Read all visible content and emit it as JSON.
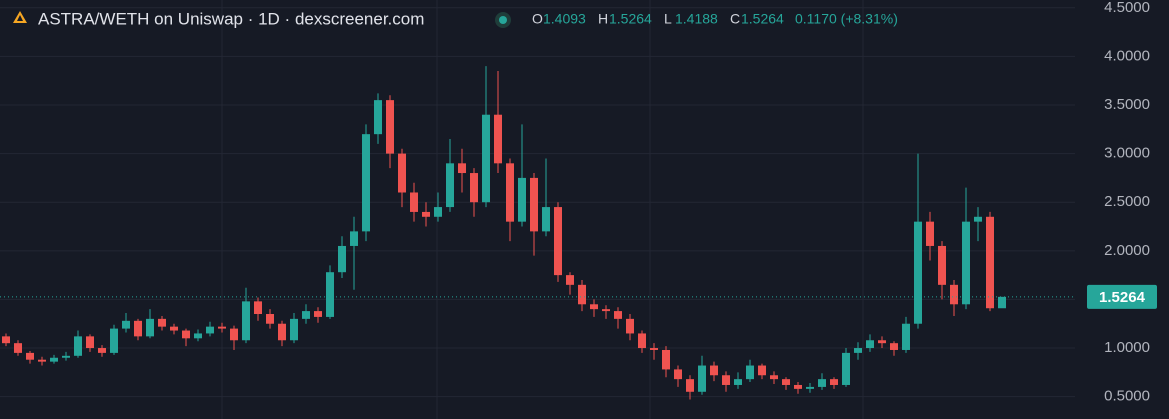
{
  "chart_data": {
    "type": "candlestick",
    "title": "ASTRA/WETH on Uniswap · 1D · dexscreener.com",
    "ohlc_legend": [
      {
        "label": "O",
        "value": 1.4093
      },
      {
        "label": "H",
        "value": 1.5264
      },
      {
        "label": "L",
        "value": 1.4188
      },
      {
        "label": "C",
        "value": 1.5264
      }
    ],
    "change": "0.1170 (+8.31%)",
    "up_color": "#26a69a",
    "down_color": "#ef5350",
    "ylim": [
      0.27,
      4.58
    ],
    "yticks": [
      {
        "value": 0.5,
        "label": "0.5000"
      },
      {
        "value": 1,
        "label": "1.0000"
      },
      {
        "value": 1.5,
        "label": "1.5000"
      },
      {
        "value": 2,
        "label": "2.0000"
      },
      {
        "value": 2.5,
        "label": "2.5000"
      },
      {
        "value": 3,
        "label": "3.0000"
      },
      {
        "value": 3.5,
        "label": "3.5000"
      },
      {
        "value": 4,
        "label": "4.0000"
      },
      {
        "value": 4.5,
        "label": "4.5000"
      }
    ],
    "grid": true,
    "last_price": 1.5264,
    "open": [
      1.12,
      1.05,
      0.95,
      0.88,
      0.86,
      0.9,
      0.92,
      1.12,
      1.0,
      0.95,
      1.2,
      1.28,
      1.12,
      1.3,
      1.22,
      1.18,
      1.1,
      1.15,
      1.22,
      1.2,
      1.08,
      1.48,
      1.35,
      1.25,
      1.08,
      1.3,
      1.38,
      1.32,
      1.78,
      2.05,
      2.2,
      3.2,
      3.55,
      3.0,
      2.6,
      2.4,
      2.35,
      2.45,
      2.9,
      2.8,
      2.5,
      3.4,
      2.9,
      2.3,
      2.75,
      2.2,
      2.45,
      1.75,
      1.65,
      1.45,
      1.4,
      1.38,
      1.3,
      1.15,
      1.0,
      0.98,
      0.78,
      0.68,
      0.55,
      0.82,
      0.72,
      0.62,
      0.68,
      0.82,
      0.72,
      0.68,
      0.62,
      0.58,
      0.6,
      0.68,
      0.62,
      0.95,
      1.0,
      1.08,
      1.05,
      0.98,
      1.25,
      2.3,
      2.05,
      1.65,
      1.45,
      2.3,
      2.35,
      1.4093
    ],
    "high": [
      1.15,
      1.08,
      0.97,
      0.91,
      0.93,
      0.96,
      1.18,
      1.14,
      1.03,
      1.24,
      1.36,
      1.3,
      1.4,
      1.33,
      1.25,
      1.2,
      1.19,
      1.27,
      1.26,
      1.23,
      1.62,
      1.52,
      1.4,
      1.28,
      1.36,
      1.45,
      1.42,
      1.85,
      2.15,
      2.35,
      3.3,
      3.62,
      3.6,
      3.05,
      2.7,
      2.5,
      2.6,
      3.15,
      3.05,
      2.85,
      3.9,
      3.85,
      2.95,
      3.3,
      2.8,
      2.95,
      2.5,
      1.78,
      1.7,
      1.5,
      1.44,
      1.42,
      1.35,
      1.18,
      1.05,
      1.02,
      0.82,
      0.72,
      0.92,
      0.86,
      0.76,
      0.75,
      0.88,
      0.84,
      0.76,
      0.7,
      0.65,
      0.64,
      0.74,
      0.7,
      1.0,
      1.06,
      1.14,
      1.12,
      1.07,
      1.32,
      3.0,
      2.4,
      2.1,
      1.7,
      2.65,
      2.45,
      2.4,
      1.5264
    ],
    "low": [
      1.02,
      0.92,
      0.84,
      0.82,
      0.84,
      0.87,
      0.9,
      0.96,
      0.91,
      0.93,
      1.16,
      1.08,
      1.1,
      1.18,
      1.14,
      1.02,
      1.07,
      1.12,
      1.16,
      0.98,
      1.05,
      1.28,
      1.2,
      1.02,
      1.05,
      1.25,
      1.26,
      1.3,
      1.72,
      1.6,
      2.1,
      3.1,
      2.85,
      2.45,
      2.3,
      2.25,
      2.3,
      2.4,
      2.6,
      2.35,
      2.45,
      2.8,
      2.1,
      2.25,
      1.95,
      2.15,
      1.68,
      1.55,
      1.38,
      1.32,
      1.3,
      1.2,
      1.08,
      0.95,
      0.88,
      0.7,
      0.6,
      0.47,
      0.52,
      0.66,
      0.55,
      0.58,
      0.65,
      0.68,
      0.63,
      0.57,
      0.53,
      0.54,
      0.57,
      0.58,
      0.6,
      0.88,
      0.96,
      1.0,
      0.92,
      0.95,
      1.2,
      1.9,
      1.5,
      1.33,
      1.4,
      2.1,
      1.38,
      1.4188
    ],
    "close": [
      1.05,
      0.95,
      0.88,
      0.86,
      0.9,
      0.92,
      1.12,
      1.0,
      0.95,
      1.2,
      1.28,
      1.12,
      1.3,
      1.22,
      1.18,
      1.1,
      1.15,
      1.22,
      1.2,
      1.08,
      1.48,
      1.35,
      1.25,
      1.08,
      1.3,
      1.38,
      1.32,
      1.78,
      2.05,
      2.2,
      3.2,
      3.55,
      3.0,
      2.6,
      2.4,
      2.35,
      2.45,
      2.9,
      2.8,
      2.5,
      3.4,
      2.9,
      2.3,
      2.75,
      2.2,
      2.45,
      1.75,
      1.65,
      1.45,
      1.4,
      1.38,
      1.3,
      1.15,
      1.0,
      0.98,
      0.78,
      0.68,
      0.55,
      0.82,
      0.72,
      0.62,
      0.68,
      0.82,
      0.72,
      0.68,
      0.62,
      0.58,
      0.6,
      0.68,
      0.62,
      0.95,
      1.0,
      1.08,
      1.05,
      0.98,
      1.25,
      2.3,
      2.05,
      1.65,
      1.45,
      2.3,
      2.35,
      1.4093,
      1.5264
    ]
  }
}
